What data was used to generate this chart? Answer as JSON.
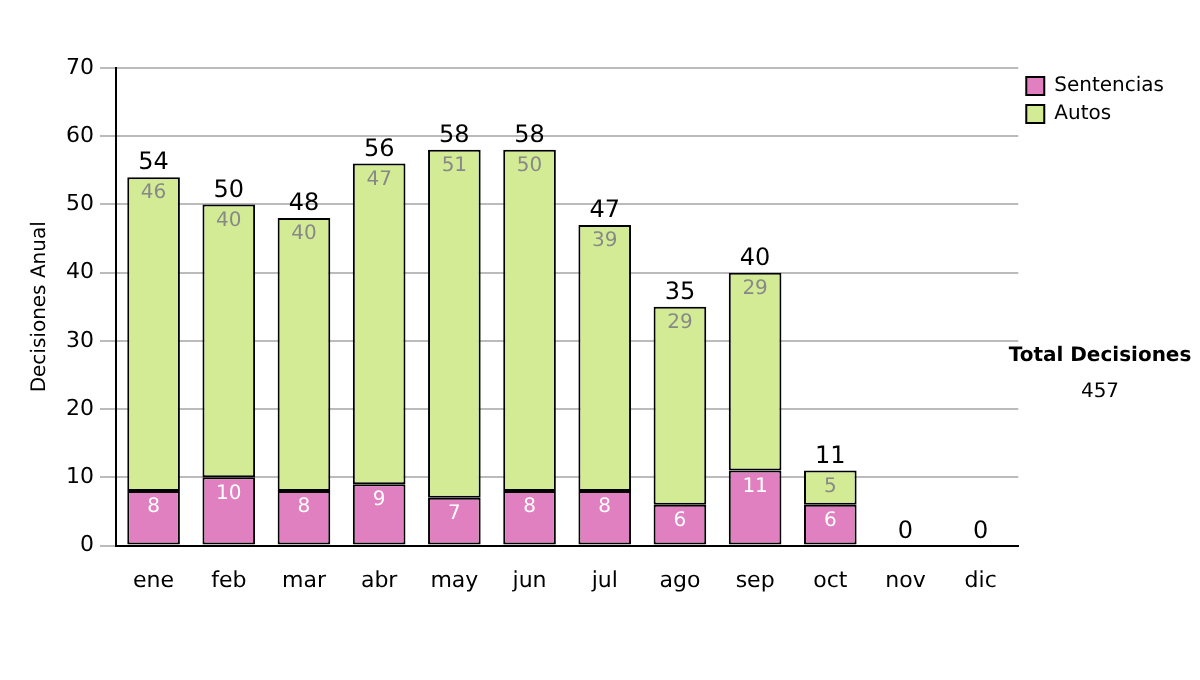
{
  "chart_data": {
    "type": "bar",
    "stacked": true,
    "ylabel": "Decisiones Anual",
    "categories": [
      "ene",
      "feb",
      "mar",
      "abr",
      "may",
      "jun",
      "jul",
      "ago",
      "sep",
      "oct",
      "nov",
      "dic"
    ],
    "series": [
      {
        "name": "Sentencias",
        "color": "#e080c0",
        "values": [
          8,
          10,
          8,
          9,
          7,
          8,
          8,
          6,
          11,
          6,
          0,
          0
        ],
        "value_labels": [
          "8",
          "10",
          "8",
          "9",
          "7",
          "8",
          "8",
          "6",
          "11",
          "6",
          null,
          null
        ]
      },
      {
        "name": "Autos",
        "color": "#d4eb96",
        "values": [
          46,
          40,
          40,
          47,
          51,
          50,
          39,
          29,
          29,
          5,
          0,
          0
        ],
        "value_labels": [
          "46",
          "40",
          "40",
          "47",
          "51",
          "50",
          "39",
          "29",
          "29",
          "5",
          null,
          null
        ]
      }
    ],
    "totals": [
      "54",
      "50",
      "48",
      "56",
      "58",
      "58",
      "47",
      "35",
      "40",
      "11",
      "0",
      "0"
    ],
    "ylim": [
      0,
      70
    ],
    "yticks": [
      0,
      10,
      20,
      30,
      40,
      50,
      60,
      70
    ],
    "grid": "y",
    "legend": "right",
    "annotations": [
      "Total Decisiones",
      "457"
    ]
  }
}
